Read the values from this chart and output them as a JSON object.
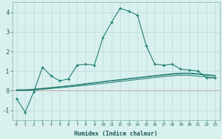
{
  "xlabel": "Humidex (Indice chaleur)",
  "x_values": [
    0,
    1,
    2,
    3,
    4,
    5,
    6,
    7,
    8,
    9,
    10,
    11,
    12,
    13,
    14,
    15,
    16,
    17,
    18,
    19,
    20,
    21,
    22,
    23
  ],
  "line1": [
    -0.4,
    -1.1,
    -0.05,
    1.2,
    0.75,
    0.5,
    0.6,
    1.3,
    1.35,
    1.3,
    2.7,
    3.5,
    4.2,
    4.05,
    3.85,
    2.3,
    1.35,
    1.3,
    1.35,
    1.1,
    1.05,
    1.0,
    0.65,
    0.65
  ],
  "line2": [
    0.05,
    0.05,
    0.08,
    0.12,
    0.16,
    0.2,
    0.25,
    0.3,
    0.36,
    0.41,
    0.47,
    0.52,
    0.57,
    0.62,
    0.67,
    0.72,
    0.77,
    0.82,
    0.87,
    0.9,
    0.9,
    0.87,
    0.82,
    0.78
  ],
  "line3": [
    0.02,
    0.02,
    0.06,
    0.1,
    0.14,
    0.19,
    0.23,
    0.28,
    0.33,
    0.38,
    0.44,
    0.49,
    0.54,
    0.59,
    0.64,
    0.69,
    0.74,
    0.79,
    0.83,
    0.86,
    0.86,
    0.83,
    0.78,
    0.74
  ],
  "line4": [
    0.0,
    0.0,
    0.03,
    0.07,
    0.11,
    0.15,
    0.19,
    0.23,
    0.28,
    0.32,
    0.37,
    0.42,
    0.47,
    0.52,
    0.57,
    0.62,
    0.67,
    0.72,
    0.76,
    0.79,
    0.78,
    0.74,
    0.7,
    0.66
  ],
  "line_color": "#1a7a6e",
  "bg_color": "#d8f0ee",
  "grid_color": "#b8d8d4",
  "ylim": [
    -1.5,
    4.5
  ],
  "xlim": [
    -0.5,
    23.5
  ],
  "yticks": [
    -1,
    0,
    1,
    2,
    3,
    4
  ],
  "xticks": [
    0,
    1,
    2,
    3,
    4,
    5,
    6,
    7,
    8,
    9,
    10,
    11,
    12,
    13,
    14,
    15,
    16,
    17,
    18,
    19,
    20,
    21,
    22,
    23
  ]
}
